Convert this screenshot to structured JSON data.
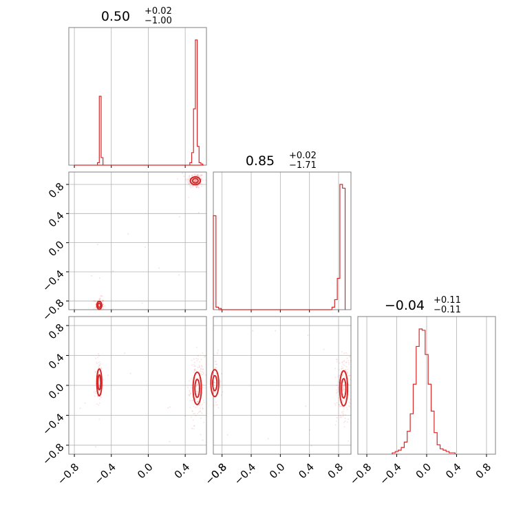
{
  "chart_data": {
    "type": "corner",
    "color": "#d62728",
    "grid": true,
    "parameters": [
      {
        "title": {
          "median": "0.50",
          "plus": "+0.02",
          "minus": "−1.00"
        }
      },
      {
        "title": {
          "median": "0.85",
          "plus": "+0.02",
          "minus": "−1.71"
        }
      },
      {
        "title": {
          "median": "−0.04",
          "plus": "+0.11",
          "minus": "−0.11"
        }
      }
    ],
    "ranges": [
      [
        -0.86,
        0.63
      ],
      [
        -0.92,
        0.97
      ],
      [
        -0.92,
        0.92
      ]
    ],
    "ticks": [
      -0.8,
      -0.4,
      0.0,
      0.4,
      0.8
    ],
    "tick_labels": [
      "−0.8",
      "−0.4",
      "0.0",
      "0.4",
      "0.8"
    ],
    "histograms": [
      {
        "edges_start": 0.45,
        "bin_width": 0.02,
        "counts": [
          2,
          10,
          45,
          100,
          15,
          2,
          1
        ]
      },
      {
        "edges_start": -0.92,
        "bin_width": 0.036,
        "counts": [
          0.75,
          0.02,
          0.01,
          0,
          0,
          0,
          0,
          0,
          0,
          0,
          0,
          0,
          0,
          0,
          0,
          0,
          0,
          0,
          0,
          0,
          0,
          0,
          0,
          0,
          0,
          0,
          0,
          0,
          0,
          0,
          0,
          0,
          0,
          0,
          0,
          0,
          0,
          0,
          0,
          0,
          0,
          0,
          0,
          0,
          0,
          0,
          0,
          0,
          0,
          0
        ]
      },
      {
        "edges_start": -0.46,
        "bin_width": 0.04,
        "counts": [
          1,
          2,
          3,
          5,
          9,
          17,
          30,
          52,
          80,
          93,
          92,
          74,
          52,
          32,
          16,
          7,
          4,
          3,
          2,
          1,
          1
        ]
      }
    ],
    "histogram_extra": {
      "p0_left_mode": {
        "edges_start": -0.55,
        "bin_width": 0.02,
        "counts": [
          2,
          55,
          6
        ]
      },
      "p1_right": {
        "edges_start": 0.71,
        "bin_width": 0.036,
        "counts": [
          2,
          8,
          25,
          100,
          97
        ]
      }
    },
    "pair_modes": [
      {
        "pair": [
          0,
          1
        ],
        "modes": [
          {
            "x": 0.51,
            "y": 0.85,
            "sx": 0.03,
            "sy": 0.03,
            "weight": 0.7
          },
          {
            "x": -0.53,
            "y": -0.86,
            "sx": 0.015,
            "sy": 0.03,
            "weight": 0.3
          }
        ]
      },
      {
        "pair": [
          0,
          2
        ],
        "modes": [
          {
            "x": 0.53,
            "y": -0.04,
            "sx": 0.025,
            "sy": 0.12,
            "weight": 0.7
          },
          {
            "x": -0.53,
            "y": 0.04,
            "sx": 0.015,
            "sy": 0.1,
            "weight": 0.3
          }
        ]
      },
      {
        "pair": [
          1,
          2
        ],
        "modes": [
          {
            "x": 0.87,
            "y": -0.04,
            "sx": 0.03,
            "sy": 0.13,
            "weight": 0.7
          },
          {
            "x": -0.9,
            "y": 0.03,
            "sx": 0.03,
            "sy": 0.1,
            "weight": 0.3
          }
        ]
      }
    ]
  }
}
